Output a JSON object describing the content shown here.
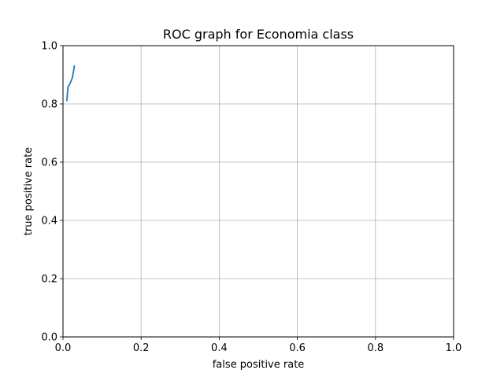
{
  "chart_data": {
    "type": "line",
    "title": "ROC graph for Economia class",
    "xlabel": "false positive rate",
    "ylabel": "true positive rate",
    "xlim": [
      0.0,
      1.0
    ],
    "ylim": [
      0.0,
      1.0
    ],
    "x_ticks": [
      0.0,
      0.2,
      0.4,
      0.6,
      0.8,
      1.0
    ],
    "y_ticks": [
      0.0,
      0.2,
      0.4,
      0.6,
      0.8,
      1.0
    ],
    "x_tick_labels": [
      "0.0",
      "0.2",
      "0.4",
      "0.6",
      "0.8",
      "1.0"
    ],
    "y_tick_labels": [
      "0.0",
      "0.2",
      "0.4",
      "0.6",
      "0.8",
      "1.0"
    ],
    "grid": true,
    "legend": false,
    "series": [
      {
        "color": "#1f77b4",
        "x": [
          0.01,
          0.011,
          0.012,
          0.013,
          0.015,
          0.018,
          0.021,
          0.024,
          0.026,
          0.028,
          0.029
        ],
        "y": [
          0.812,
          0.83,
          0.845,
          0.86,
          0.862,
          0.87,
          0.88,
          0.89,
          0.905,
          0.92,
          0.93
        ]
      }
    ]
  }
}
